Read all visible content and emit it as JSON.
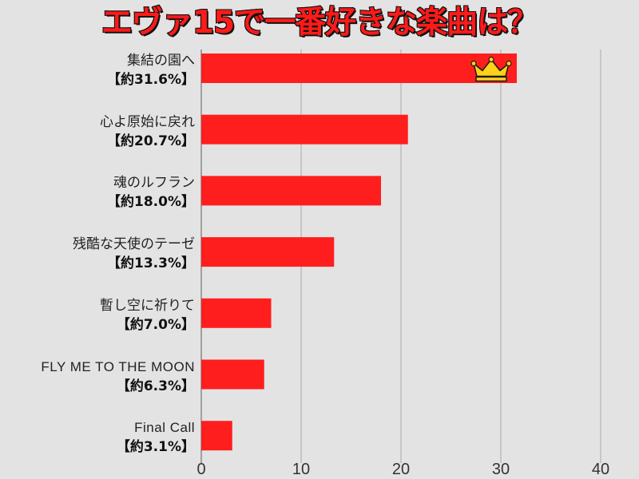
{
  "title": "エヴァ15で一番好きな楽曲は？",
  "chart_data": {
    "type": "bar",
    "orientation": "horizontal",
    "categories": [
      "集結の園へ",
      "心よ原始に戻れ",
      "魂のルフラン",
      "残酷な天使のテーゼ",
      "暫し空に祈りて",
      "FLY ME TO THE MOON",
      "Final Call"
    ],
    "value_labels": [
      "【約31.6%】",
      "【約20.7%】",
      "【約18.0%】",
      "【約13.3%】",
      "【約7.0%】",
      "【約6.3%】",
      "【約3.1%】"
    ],
    "values": [
      31.6,
      20.7,
      18.0,
      13.3,
      7.0,
      6.3,
      3.1
    ],
    "xticks": [
      "0",
      "10",
      "20",
      "30",
      "40"
    ],
    "xlim": [
      0,
      40
    ],
    "grid": "vertical",
    "bar_color": "#ff1e1e",
    "top_bar_badge": "crown-icon",
    "crown_color": "#ffd21a"
  }
}
